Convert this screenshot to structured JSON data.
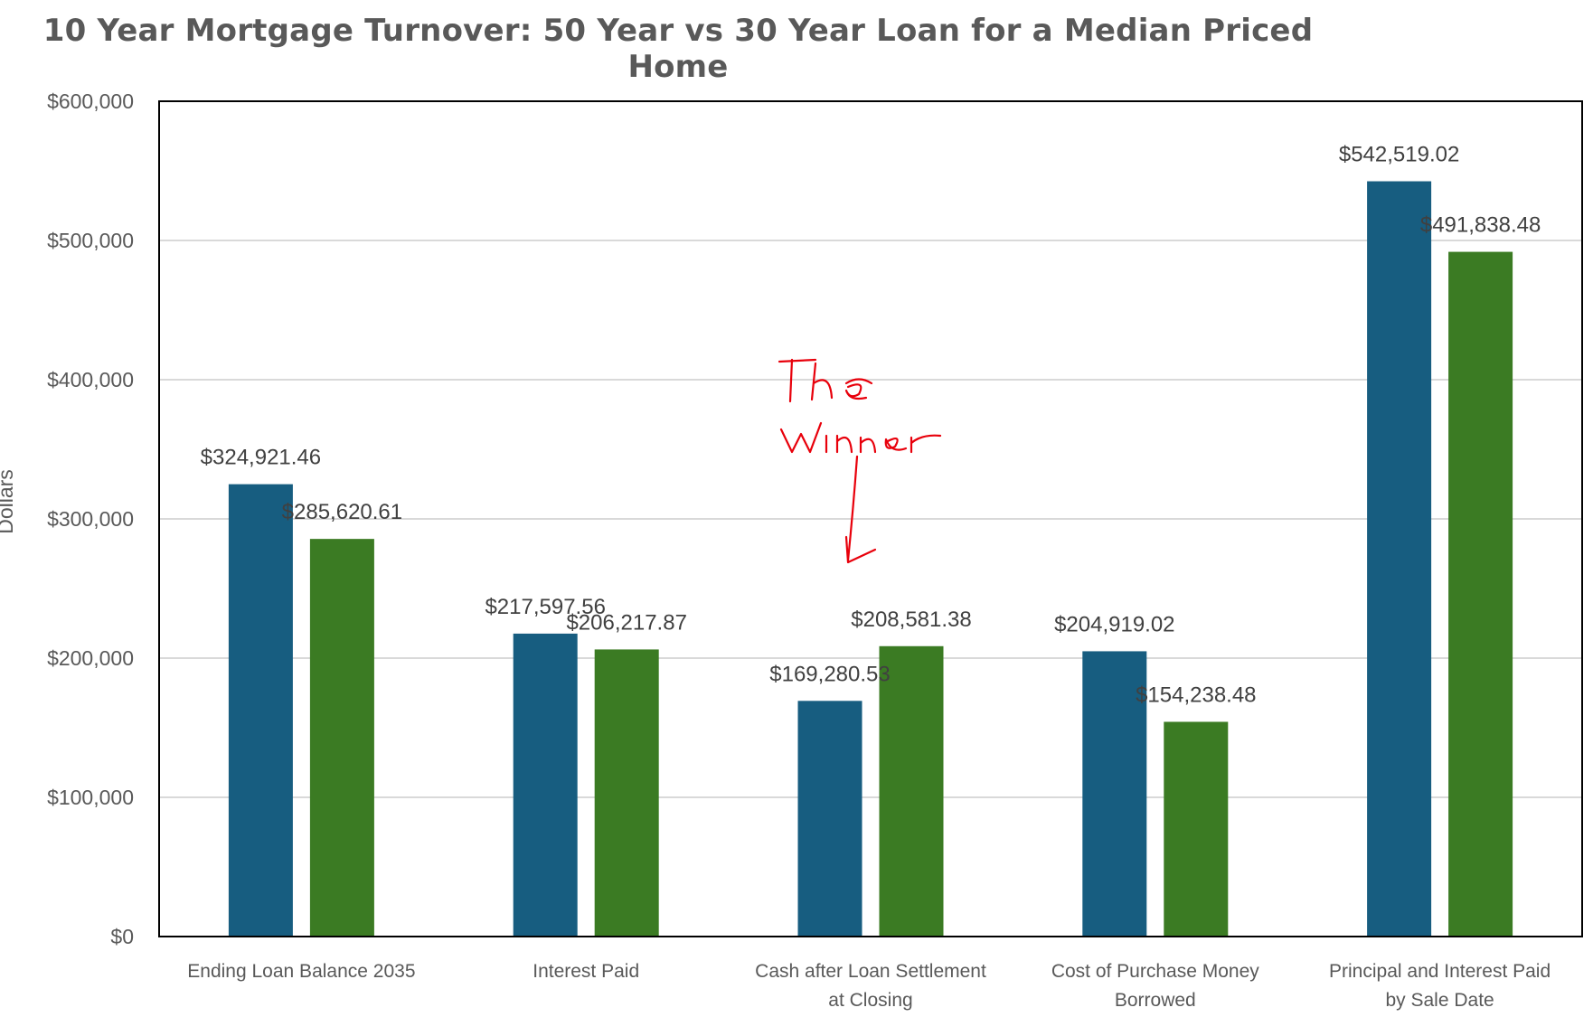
{
  "chart_data": {
    "type": "bar",
    "title": "10 Year Mortgage Turnover: 50 Year vs 30 Year Loan for a Median Priced Home",
    "ylabel": "Dollars",
    "xlabel": "",
    "ylim": [
      0,
      600000
    ],
    "yticks": [
      0,
      100000,
      200000,
      300000,
      400000,
      500000,
      600000
    ],
    "ytick_labels": [
      "$0",
      "$100,000",
      "$200,000",
      "$300,000",
      "$400,000",
      "$500,000",
      "$600,000"
    ],
    "grid": true,
    "categories": [
      [
        "Ending Loan Balance 2035"
      ],
      [
        "Interest Paid"
      ],
      [
        "Cash after Loan Settlement",
        "at Closing"
      ],
      [
        "Cost of Purchase Money",
        "Borrowed"
      ],
      [
        "Principal and Interest Paid",
        "by Sale Date"
      ]
    ],
    "series": [
      {
        "color": "#175d80",
        "values": [
          324921.46,
          217597.56,
          169280.53,
          204919.02,
          542519.02
        ],
        "labels": [
          "$324,921.46",
          "$217,597.56",
          "$169,280.53",
          "$204,919.02",
          "$542,519.02"
        ]
      },
      {
        "color": "#3b7b23",
        "values": [
          285620.61,
          206217.87,
          208581.38,
          154238.48,
          491838.48
        ],
        "labels": [
          "$285,620.61",
          "$206,217.87",
          "$208,581.38",
          "$154,238.48",
          "$491,838.48"
        ]
      }
    ],
    "annotation": {
      "text_lines": [
        "The",
        "Winner"
      ],
      "color": "#e8000b",
      "points_to": "Cash after Loan Settlement at Closing"
    }
  }
}
